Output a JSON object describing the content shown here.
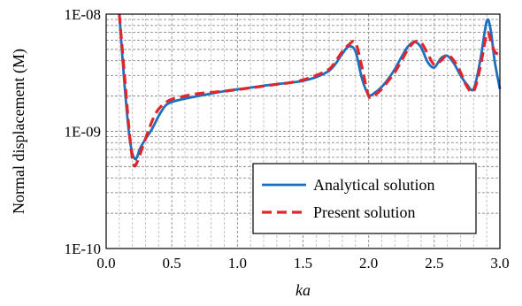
{
  "chart_data": {
    "type": "line",
    "title": "",
    "xlabel": "ka",
    "ylabel": "Normal displacement (M)",
    "xlim": [
      0.0,
      3.0
    ],
    "ylim": [
      1e-10,
      1e-08
    ],
    "yscale": "log",
    "grid": true,
    "legend_position": "lower-right",
    "x_ticks": [
      0.0,
      0.5,
      1.0,
      1.5,
      2.0,
      2.5,
      3.0
    ],
    "x_tick_labels": [
      "0.0",
      "0.5",
      "1.0",
      "1.5",
      "2.0",
      "2.5",
      "3.0"
    ],
    "y_ticks": [
      1e-10,
      1e-09,
      1e-08
    ],
    "y_tick_labels": [
      "1E-10",
      "1E-09",
      "1E-08"
    ],
    "series": [
      {
        "name": "Analytical solution",
        "color": "#1f6fbf",
        "style": "solid",
        "x": [
          0.1,
          0.14,
          0.18,
          0.22,
          0.26,
          0.3,
          0.35,
          0.4,
          0.45,
          0.5,
          0.6,
          0.7,
          0.8,
          0.9,
          1.0,
          1.1,
          1.2,
          1.3,
          1.4,
          1.5,
          1.6,
          1.7,
          1.75,
          1.8,
          1.85,
          1.9,
          1.95,
          2.0,
          2.05,
          2.1,
          2.15,
          2.2,
          2.25,
          2.3,
          2.35,
          2.4,
          2.45,
          2.5,
          2.55,
          2.6,
          2.65,
          2.7,
          2.75,
          2.8,
          2.85,
          2.9,
          2.93,
          2.96,
          3.0
        ],
        "y": [
          1e-08,
          2.5e-09,
          8.5e-10,
          5.8e-10,
          7.2e-10,
          8.6e-10,
          1.05e-09,
          1.35e-09,
          1.65e-09,
          1.78e-09,
          1.9e-09,
          2e-09,
          2.1e-09,
          2.2e-09,
          2.28e-09,
          2.36e-09,
          2.45e-09,
          2.53e-09,
          2.6e-09,
          2.7e-09,
          2.9e-09,
          3.3e-09,
          3.8e-09,
          4.6e-09,
          5.3e-09,
          4.8e-09,
          2.8e-09,
          2.05e-09,
          2.15e-09,
          2.4e-09,
          2.8e-09,
          3.4e-09,
          4.3e-09,
          5.3e-09,
          5.8e-09,
          5.2e-09,
          3.9e-09,
          3.5e-09,
          4.2e-09,
          4.4e-09,
          3.8e-09,
          3e-09,
          2.5e-09,
          2.3e-09,
          4e-09,
          8.7e-09,
          7.3e-09,
          4e-09,
          2.3e-09
        ]
      },
      {
        "name": "Present solution",
        "color": "#e0262c",
        "style": "dashed",
        "x": [
          0.1,
          0.14,
          0.18,
          0.21,
          0.24,
          0.28,
          0.32,
          0.36,
          0.4,
          0.45,
          0.5,
          0.6,
          0.7,
          0.8,
          0.9,
          1.0,
          1.1,
          1.2,
          1.3,
          1.4,
          1.5,
          1.6,
          1.7,
          1.75,
          1.8,
          1.85,
          1.9,
          1.95,
          2.0,
          2.05,
          2.1,
          2.15,
          2.2,
          2.25,
          2.3,
          2.35,
          2.4,
          2.45,
          2.5,
          2.55,
          2.6,
          2.65,
          2.7,
          2.75,
          2.8,
          2.85,
          2.9,
          2.93,
          2.96,
          3.0
        ],
        "y": [
          1e-08,
          3e-09,
          9e-10,
          5.2e-10,
          5.6e-10,
          7.5e-10,
          1e-09,
          1.3e-09,
          1.55e-09,
          1.75e-09,
          1.88e-09,
          2e-09,
          2.1e-09,
          2.15e-09,
          2.2e-09,
          2.27e-09,
          2.35e-09,
          2.43e-09,
          2.52e-09,
          2.6e-09,
          2.75e-09,
          3e-09,
          3.4e-09,
          4e-09,
          4.8e-09,
          5.5e-09,
          5.7e-09,
          3.5e-09,
          2e-09,
          2.05e-09,
          2.3e-09,
          2.7e-09,
          3.2e-09,
          4e-09,
          5e-09,
          5.8e-09,
          5.7e-09,
          4.6e-09,
          3.7e-09,
          4e-09,
          4.5e-09,
          4e-09,
          3.2e-09,
          2.4e-09,
          2.2e-09,
          3.5e-09,
          6.8e-09,
          6e-09,
          4.8e-09,
          4.5e-09
        ]
      }
    ]
  }
}
